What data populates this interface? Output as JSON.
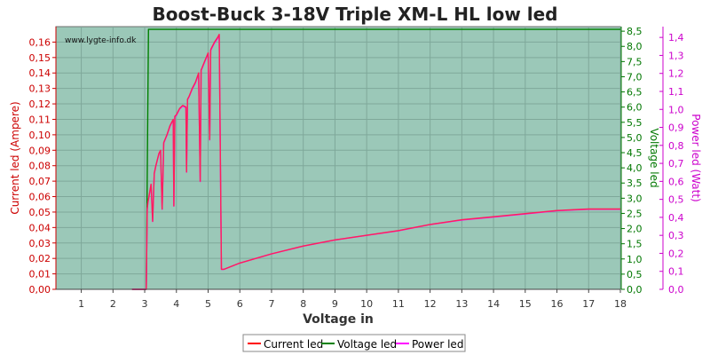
{
  "chart_data": {
    "type": "line",
    "title": "Boost-Buck 3-18V Triple XM-L HL low led",
    "watermark": "www.lygte-info.dk",
    "xlabel": "Voltage in",
    "ylabel_left": "Current led (Ampere)",
    "ylabel_right1": "Voltage led",
    "ylabel_right2": "Power led (Watt)",
    "xlim": [
      0.2,
      18
    ],
    "ylim_left": [
      0,
      0.17
    ],
    "ylim_right1": [
      0,
      8.65
    ],
    "ylim_right2": [
      0,
      1.46
    ],
    "x_ticks": [
      1,
      2,
      3,
      4,
      5,
      6,
      7,
      8,
      9,
      10,
      11,
      12,
      13,
      14,
      15,
      16,
      17,
      18
    ],
    "y_left_ticks": [
      "0,00",
      "0,01",
      "0,02",
      "0,03",
      "0,04",
      "0,05",
      "0,06",
      "0,07",
      "0,08",
      "0,09",
      "0,10",
      "0,11",
      "0,12",
      "0,13",
      "0,14",
      "0,15",
      "0,16"
    ],
    "y_right1_ticks": [
      "0,0",
      "0,5",
      "1,0",
      "1,5",
      "2,0",
      "2,5",
      "3,0",
      "3,5",
      "4,0",
      "4,5",
      "5,0",
      "5,5",
      "6,0",
      "6,5",
      "7,0",
      "7,5",
      "8,0",
      "8,5"
    ],
    "y_right2_ticks": [
      "0,0",
      "0,1",
      "0,2",
      "0,3",
      "0,4",
      "0,5",
      "0,6",
      "0,7",
      "0,8",
      "0,9",
      "1,0",
      "1,1",
      "1,2",
      "1,3",
      "1,4"
    ],
    "grid": true,
    "legend_position": "bottom",
    "colors": {
      "plot_bg": "#9bc8b8",
      "current": "#ff0000",
      "voltage": "#008000",
      "power": "#ff00ff",
      "overlay": "#ff1f5a",
      "left_axis": "#cc0000",
      "right1_axis": "#007700",
      "right2_axis": "#cc00cc"
    },
    "series": [
      {
        "name": "Current led",
        "axis": "left",
        "color": "#ff0000",
        "x": [
          2.6,
          3.05,
          3.08,
          3.1,
          3.2,
          3.25,
          3.3,
          3.35,
          3.45,
          3.5,
          3.55,
          3.6,
          3.7,
          3.8,
          3.9,
          3.92,
          3.95,
          4.0,
          4.1,
          4.2,
          4.3,
          4.32,
          4.35,
          4.4,
          4.5,
          4.6,
          4.7,
          4.75,
          4.78,
          4.8,
          4.9,
          5.0,
          5.05,
          5.08,
          5.1,
          5.2,
          5.3,
          5.35,
          5.42,
          5.5,
          6,
          7,
          8,
          9,
          10,
          11,
          12,
          13,
          14,
          15,
          16,
          17,
          18
        ],
        "values": [
          0.0,
          0.0,
          0.052,
          0.056,
          0.068,
          0.044,
          0.075,
          0.08,
          0.088,
          0.09,
          0.052,
          0.095,
          0.1,
          0.106,
          0.11,
          0.054,
          0.112,
          0.113,
          0.117,
          0.119,
          0.118,
          0.076,
          0.123,
          0.125,
          0.13,
          0.134,
          0.14,
          0.07,
          0.142,
          0.143,
          0.148,
          0.153,
          0.097,
          0.155,
          0.156,
          0.16,
          0.163,
          0.165,
          0.013,
          0.013,
          0.017,
          0.023,
          0.028,
          0.032,
          0.035,
          0.038,
          0.042,
          0.045,
          0.047,
          0.049,
          0.051,
          0.052,
          0.052
        ]
      },
      {
        "name": "Voltage led",
        "axis": "right1",
        "color": "#008000",
        "x": [
          2.6,
          3.05,
          3.12,
          18
        ],
        "values": [
          0.0,
          0.0,
          8.56,
          8.56
        ]
      },
      {
        "name": "Power led",
        "axis": "right2",
        "color": "#ff00ff",
        "x": [
          2.6,
          3.05,
          3.08,
          3.1,
          3.2,
          3.25,
          3.3,
          3.35,
          3.45,
          3.5,
          3.55,
          3.6,
          3.7,
          3.8,
          3.9,
          3.92,
          3.95,
          4.0,
          4.1,
          4.2,
          4.3,
          4.32,
          4.35,
          4.4,
          4.5,
          4.6,
          4.7,
          4.75,
          4.78,
          4.8,
          4.9,
          5.0,
          5.05,
          5.08,
          5.1,
          5.2,
          5.3,
          5.35,
          5.42,
          5.5,
          6,
          7,
          8,
          9,
          10,
          11,
          12,
          13,
          14,
          15,
          16,
          17,
          18
        ],
        "values": [
          0.0,
          0.0,
          0.445,
          0.479,
          0.582,
          0.377,
          0.642,
          0.685,
          0.753,
          0.771,
          0.445,
          0.813,
          0.856,
          0.907,
          0.942,
          0.462,
          0.959,
          0.967,
          1.002,
          1.019,
          1.01,
          0.651,
          1.053,
          1.07,
          1.113,
          1.147,
          1.198,
          0.599,
          1.216,
          1.224,
          1.267,
          1.31,
          0.83,
          1.327,
          1.335,
          1.37,
          1.395,
          1.412,
          0.111,
          0.111,
          0.146,
          0.197,
          0.24,
          0.274,
          0.3,
          0.325,
          0.36,
          0.385,
          0.402,
          0.419,
          0.437,
          0.445,
          0.445
        ]
      }
    ]
  },
  "legend": {
    "items": [
      {
        "label": "Current led",
        "color": "#ff0000"
      },
      {
        "label": "Voltage led",
        "color": "#008000"
      },
      {
        "label": "Power led",
        "color": "#ff00ff"
      }
    ]
  }
}
